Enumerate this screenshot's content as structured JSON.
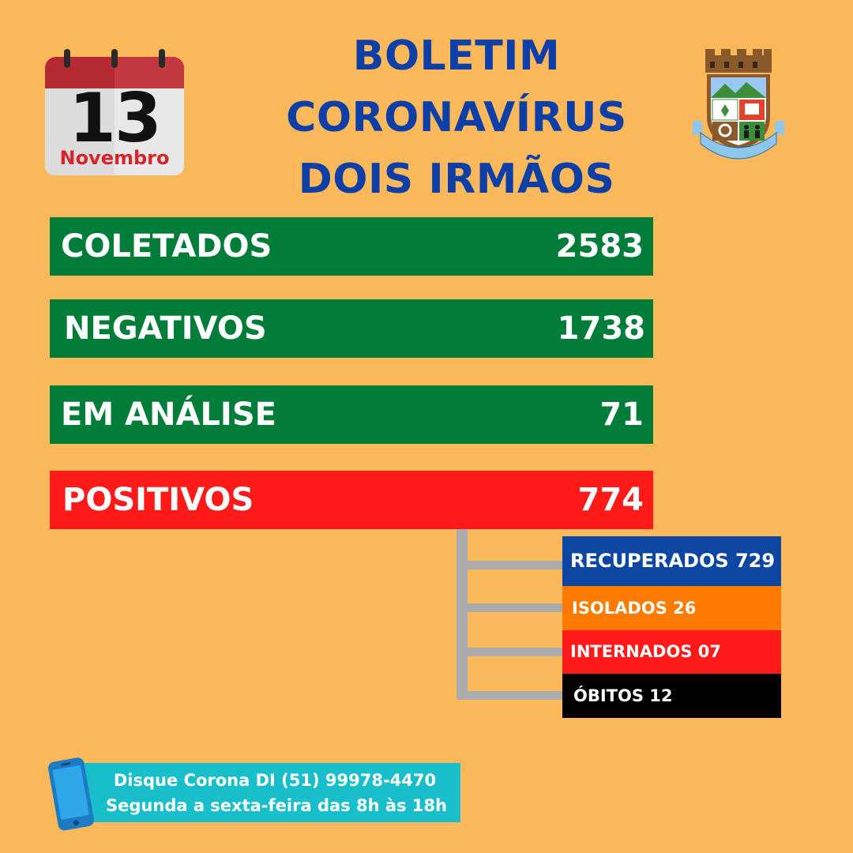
{
  "calendar": {
    "day": "13",
    "month": "Novembro"
  },
  "title": {
    "line1": "BOLETIM",
    "line2": "CORONAVÍRUS",
    "line3": "DOIS IRMÃOS"
  },
  "crest": {
    "icon": "municipal-coat-of-arms",
    "ribbon_text": "28 - 9 - 1959 DOIS IRMÃOS - RS 10 - 9 - 1959"
  },
  "stats": [
    {
      "label": "COLETADOS",
      "value": "2583",
      "color": "#017D39"
    },
    {
      "label": "NEGATIVOS",
      "value": "1738",
      "color": "#017D39"
    },
    {
      "label": "EM ANÁLISE",
      "value": "71",
      "color": "#017D39"
    },
    {
      "label": "POSITIVOS",
      "value": "774",
      "color": "#FF1A1A"
    }
  ],
  "positives_breakdown": [
    {
      "text": "RECUPERADOS 729",
      "color": "#0E47A1"
    },
    {
      "text": "ISOLADOS  26",
      "color": "#FF7A00"
    },
    {
      "text": "INTERNADOS  07",
      "color": "#FF1A1A"
    },
    {
      "text": "ÓBITOS 12",
      "color": "#000000"
    }
  ],
  "contact": {
    "icon": "smartphone-icon",
    "line1": "Disque Corona DI (51) 99978-4470",
    "line2": "Segunda a sexta-feira das 8h às 18h"
  },
  "colors": {
    "background": "#FBB95C",
    "title": "#0E3FA6",
    "contact_bg": "#18BFCB"
  }
}
